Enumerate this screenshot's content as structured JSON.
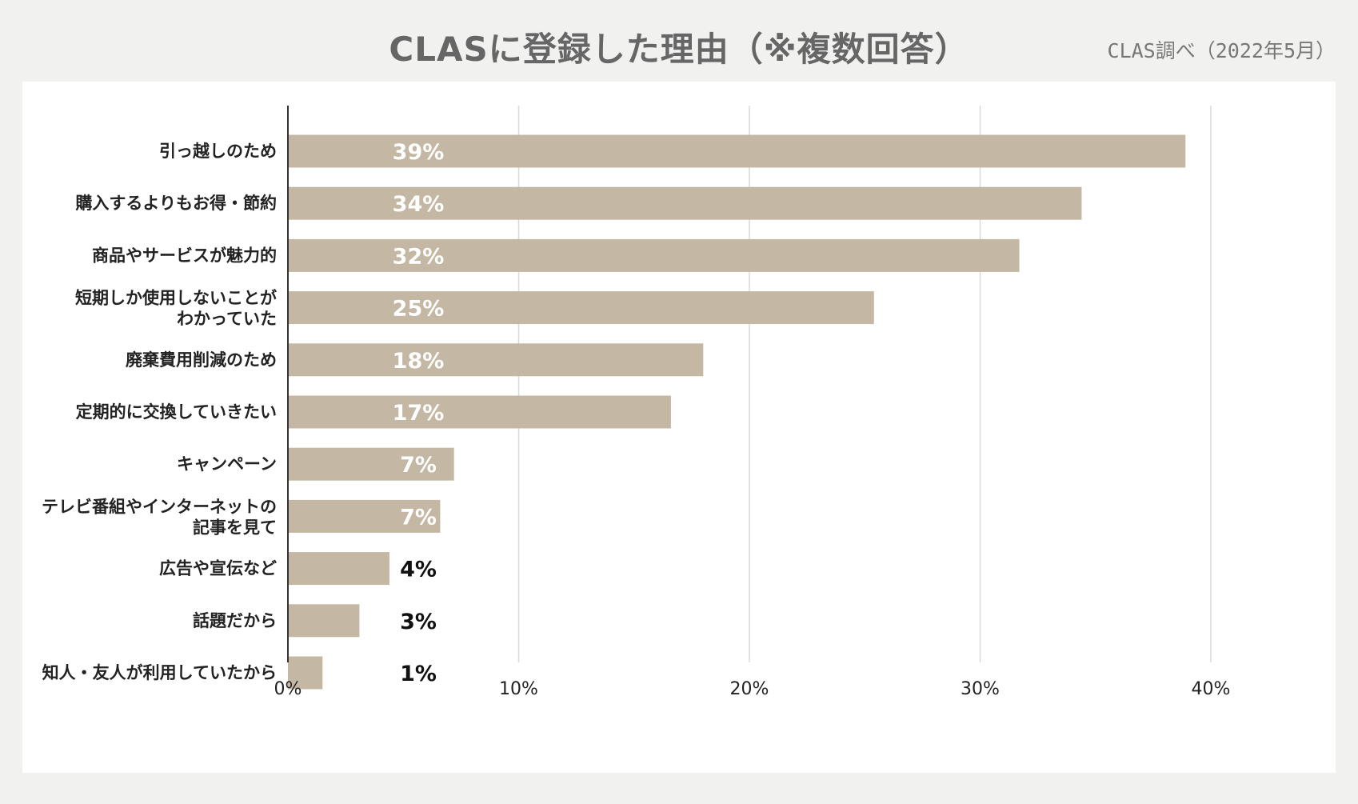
{
  "title": "CLASに登録した理由（※複数回答）",
  "source": "CLAS調べ（2022年5月）",
  "colors": {
    "bar": "#c4b8a4",
    "grid": "#d9d9d9",
    "axis": "#333333",
    "label_inside": "#ffffff",
    "label_outside": "#111111"
  },
  "chart_data": {
    "type": "bar",
    "orientation": "horizontal",
    "categories": [
      "引っ越しのため",
      "購入するよりもお得・節約",
      "商品やサービスが魅力的",
      "短期しか使用しないことが\nわかっていた",
      "廃棄費用削減のため",
      "定期的に交換していきたい",
      "キャンペーン",
      "テレビ番組やインターネットの\n記事を見て",
      "広告や宣伝など",
      "話題だから",
      "知人・友人が利用していたから"
    ],
    "values": [
      38.9,
      34.4,
      31.7,
      25.4,
      18.0,
      16.6,
      7.2,
      6.6,
      4.4,
      3.1,
      1.5
    ],
    "data_labels": [
      "39%",
      "34%",
      "32%",
      "25%",
      "18%",
      "17%",
      "7%",
      "7%",
      "4%",
      "3%",
      "1%"
    ],
    "xlim": [
      0,
      40
    ],
    "xticks": [
      0,
      10,
      20,
      30,
      40
    ],
    "xtick_labels": [
      "0%",
      "10%",
      "20%",
      "30%",
      "40%"
    ],
    "grid": "vertical",
    "legend": "none"
  }
}
